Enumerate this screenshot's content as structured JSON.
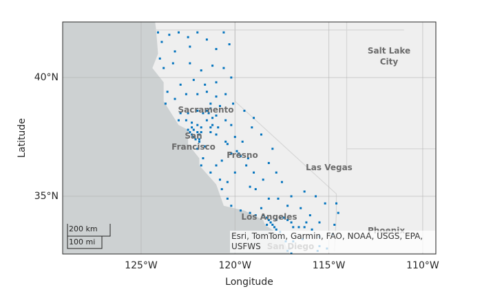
{
  "chart_data": {
    "type": "geoscatter",
    "xlabel": "Longitude",
    "ylabel": "Latitude",
    "xlim": [
      -129.18,
      -109.3
    ],
    "ylim": [
      32.57,
      42.34
    ],
    "xticks": [
      {
        "value": -125,
        "label": "125°W"
      },
      {
        "value": -120,
        "label": "120°W"
      },
      {
        "value": -115,
        "label": "115°W"
      },
      {
        "value": -110,
        "label": "110°W"
      }
    ],
    "yticks": [
      {
        "value": 35,
        "label": "35°N"
      },
      {
        "value": 40,
        "label": "40°N"
      }
    ],
    "grid": true,
    "color": "#0072bd",
    "x": [
      -124.1,
      -123.9,
      -123.5,
      -123.0,
      -122.5,
      -122.0,
      -121.5,
      -120.6,
      -120.3,
      -121.0,
      -122.4,
      -123.2,
      -124.0,
      -123.8,
      -123.3,
      -122.4,
      -121.8,
      -121.2,
      -120.6,
      -120.2,
      -121.0,
      -121.6,
      -122.2,
      -122.9,
      -123.6,
      -123.7,
      -123.2,
      -122.6,
      -122.0,
      -121.5,
      -121.0,
      -120.5,
      -120.1,
      -120.8,
      -121.3,
      -121.5,
      -121.4,
      -121.3,
      -121.7,
      -122.0,
      -122.5,
      -122.9,
      -123.0,
      -122.6,
      -122.3,
      -122.0,
      -121.8,
      -122.5,
      -122.4,
      -122.3,
      -122.2,
      -122.1,
      -121.9,
      -121.9,
      -122.0,
      -121.6,
      -121.3,
      -121.0,
      -120.9,
      -121.2,
      -120.5,
      -120.2,
      -120.0,
      -119.6,
      -119.8,
      -119.7,
      -119.9,
      -120.2,
      -120.4,
      -120.7,
      -121.0,
      -121.7,
      -121.8,
      -121.3,
      -120.8,
      -120.7,
      -120.4,
      -120.0,
      -119.4,
      -119.3,
      -119.0,
      -119.2,
      -118.9,
      -118.5,
      -118.2,
      -118.0,
      -118.6,
      -119.1,
      -119.0,
      -119.5,
      -117.8,
      -117.5,
      -117.0,
      -116.3,
      -115.7,
      -115.2,
      -114.6,
      -114.5,
      -114.7,
      -114.8,
      -115.5,
      -116.0,
      -116.5,
      -117.2,
      -117.7,
      -118.2,
      -118.6,
      -119.2,
      -119.7,
      -120.2,
      -120.4,
      -118.9,
      -118.5,
      -118.3,
      -118.2,
      -118.1,
      -118.0,
      -117.9,
      -117.8,
      -117.6,
      -117.4,
      -117.2,
      -117.0,
      -116.9,
      -116.6,
      -116.3,
      -116.2,
      -115.9,
      -115.5,
      -115.5,
      -115.6,
      -115.1,
      -116.4,
      -116.9,
      -117.1,
      -117.2,
      -117.0,
      -117.3,
      -117.6,
      -118.3,
      -117.8,
      -122.3,
      -122.2,
      -122.0,
      -121.9,
      -121.8,
      -121.5,
      -121.2,
      -121.0,
      -121.3,
      -120.5
    ],
    "values": [
      41.9,
      41.5,
      41.8,
      41.9,
      41.7,
      41.9,
      41.6,
      41.9,
      41.4,
      41.2,
      41.3,
      41.1,
      40.8,
      40.4,
      40.6,
      40.6,
      40.3,
      40.5,
      40.4,
      40.0,
      39.8,
      39.7,
      39.9,
      39.7,
      39.4,
      38.9,
      39.1,
      39.3,
      39.3,
      39.4,
      39.2,
      39.3,
      38.9,
      38.8,
      38.9,
      38.6,
      38.5,
      38.7,
      38.5,
      38.6,
      38.5,
      38.5,
      38.2,
      38.2,
      38.1,
      38.0,
      37.9,
      37.8,
      37.7,
      37.6,
      37.5,
      37.4,
      37.4,
      37.3,
      37.0,
      37.1,
      37.7,
      37.6,
      37.9,
      38.0,
      38.2,
      38.0,
      37.5,
      37.3,
      36.8,
      36.7,
      36.9,
      36.8,
      37.2,
      36.5,
      36.3,
      36.6,
      36.3,
      36.0,
      35.7,
      35.3,
      35.6,
      36.0,
      36.3,
      36.6,
      36.0,
      35.4,
      35.3,
      35.7,
      36.4,
      37.0,
      37.6,
      37.9,
      38.3,
      38.6,
      36.0,
      35.6,
      35.0,
      35.2,
      35.0,
      34.7,
      34.7,
      34.3,
      33.8,
      33.4,
      33.9,
      34.2,
      34.5,
      34.6,
      34.9,
      34.9,
      34.5,
      34.3,
      34.4,
      34.6,
      34.9,
      34.2,
      34.2,
      34.1,
      34.0,
      33.9,
      33.8,
      33.7,
      34.0,
      34.1,
      34.1,
      34.0,
      33.9,
      33.7,
      33.7,
      33.7,
      33.9,
      33.6,
      33.3,
      32.9,
      32.7,
      32.8,
      33.2,
      33.1,
      32.8,
      32.7,
      32.6,
      33.1,
      33.5,
      33.8,
      33.6,
      37.9,
      37.8,
      37.7,
      37.6,
      37.7,
      38.2,
      38.3,
      38.4,
      37.9,
      37.3
    ],
    "map_labels": [
      "Salt Lake City",
      "Las Vegas",
      "Sacramento",
      "San Francisco",
      "Fresno",
      "Los Angeles",
      "Phoenix",
      "San Diego"
    ],
    "scale_bar": [
      "200 km",
      "100 mi"
    ],
    "attribution": "Esri, TomTom, Garmin, FAO, NOAA, USGS, EPA, USFWS"
  }
}
